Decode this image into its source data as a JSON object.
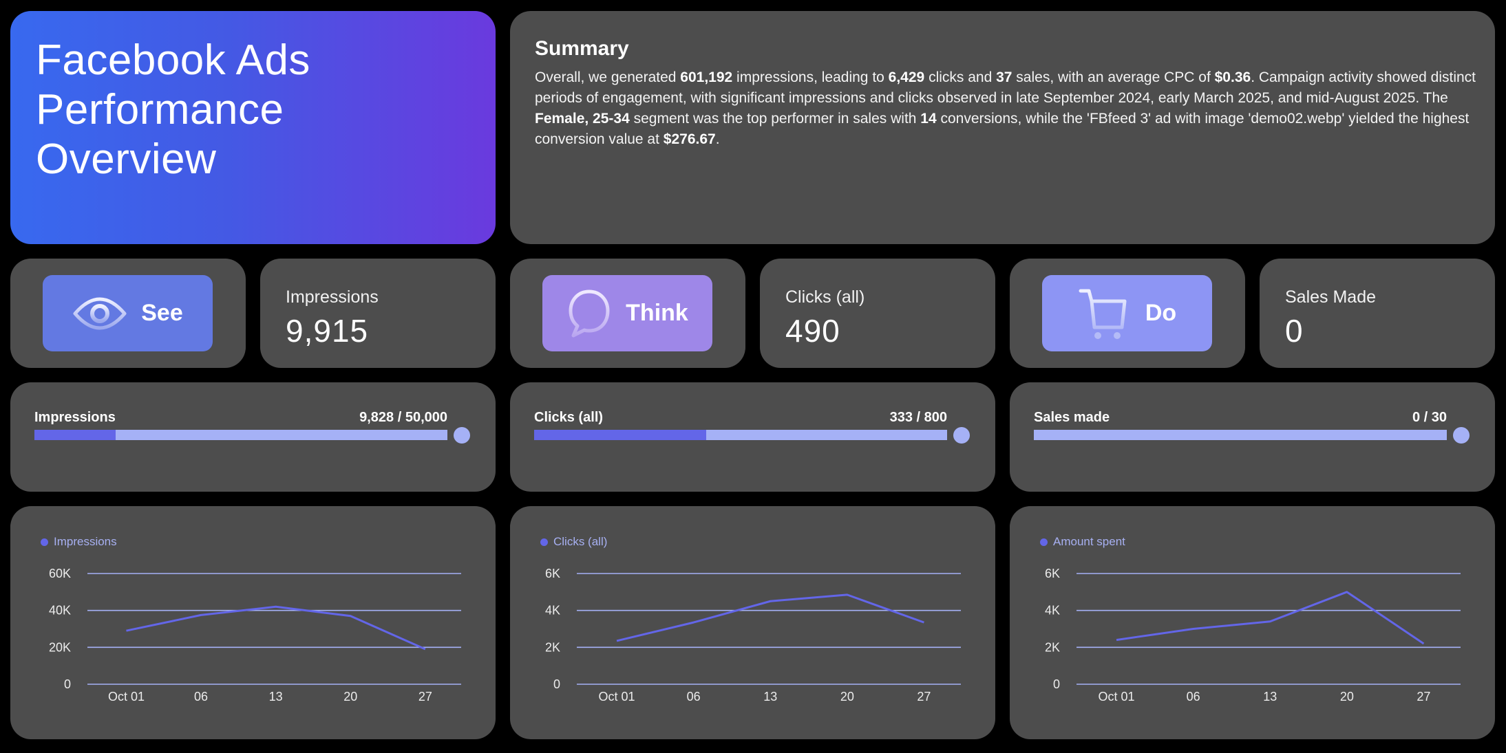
{
  "header": {
    "title": "Facebook Ads\nPerformance\nOverview"
  },
  "summary": {
    "heading": "Summary",
    "segments": [
      {
        "t": "Overall, we generated ",
        "b": false
      },
      {
        "t": "601,192",
        "b": true
      },
      {
        "t": " impressions, leading to ",
        "b": false
      },
      {
        "t": "6,429",
        "b": true
      },
      {
        "t": " clicks and ",
        "b": false
      },
      {
        "t": "37",
        "b": true
      },
      {
        "t": " sales, with an average CPC of ",
        "b": false
      },
      {
        "t": "$0.36",
        "b": true
      },
      {
        "t": ". Campaign activity showed distinct periods of engagement, with significant impressions and clicks observed in late September 2024, early March 2025, and mid-August 2025. The ",
        "b": false
      },
      {
        "t": "Female, 25-34",
        "b": true
      },
      {
        "t": " segment was the top performer in sales with ",
        "b": false
      },
      {
        "t": "14",
        "b": true
      },
      {
        "t": " conversions, while the 'FBfeed 3' ad with image 'demo02.webp' yielded the highest conversion value at ",
        "b": false
      },
      {
        "t": "$276.67",
        "b": true
      },
      {
        "t": ".",
        "b": false
      }
    ]
  },
  "funnel": [
    {
      "stage": "See",
      "icon": "eye-icon",
      "color": "#6379e2",
      "stat_label": "Impressions",
      "stat_value": "9,915"
    },
    {
      "stage": "Think",
      "icon": "speech-bubble-icon",
      "color": "#9e87e8",
      "stat_label": "Clicks (all)",
      "stat_value": "490"
    },
    {
      "stage": "Do",
      "icon": "shopping-cart-icon",
      "color": "#8d95f4",
      "stat_label": "Sales Made",
      "stat_value": "0"
    }
  ],
  "progress": [
    {
      "label": "Impressions",
      "value_text": "9,828 / 50,000",
      "current": 9828,
      "target": 50000
    },
    {
      "label": "Clicks (all)",
      "value_text": "333 / 800",
      "current": 333,
      "target": 800
    },
    {
      "label": "Sales made",
      "value_text": "0 / 30",
      "current": 0,
      "target": 30
    }
  ],
  "colors": {
    "background": "#000000",
    "card": "#4d4d4d",
    "line": "#6366e8",
    "grid": "#a5b1f6",
    "track": "#a5b1f6",
    "fill": "#6366e8",
    "legend_text": "#a7b0f2"
  },
  "chart_data": [
    {
      "type": "line",
      "title": "",
      "legend": [
        "Impressions"
      ],
      "categories": [
        "Oct 01",
        "06",
        "13",
        "20",
        "27"
      ],
      "series": [
        {
          "name": "Impressions",
          "values": [
            29000,
            37500,
            42000,
            37000,
            19000
          ]
        }
      ],
      "yticks": [
        "0",
        "20K",
        "40K",
        "60K"
      ],
      "ylim": [
        0,
        60000
      ],
      "grid": true,
      "legend_position": "top-left"
    },
    {
      "type": "line",
      "title": "",
      "legend": [
        "Clicks (all)"
      ],
      "categories": [
        "Oct 01",
        "06",
        "13",
        "20",
        "27"
      ],
      "series": [
        {
          "name": "Clicks (all)",
          "values": [
            2350,
            3350,
            4500,
            4850,
            3350
          ]
        }
      ],
      "yticks": [
        "0",
        "2K",
        "4K",
        "6K"
      ],
      "ylim": [
        0,
        6000
      ],
      "grid": true,
      "legend_position": "top-left"
    },
    {
      "type": "line",
      "title": "",
      "legend": [
        "Amount spent"
      ],
      "categories": [
        "Oct 01",
        "06",
        "13",
        "20",
        "27"
      ],
      "series": [
        {
          "name": "Amount spent",
          "values": [
            2400,
            3000,
            3400,
            5000,
            2200
          ]
        }
      ],
      "yticks": [
        "0",
        "2K",
        "4K",
        "6K"
      ],
      "ylim": [
        0,
        6000
      ],
      "grid": true,
      "legend_position": "top-left"
    }
  ]
}
